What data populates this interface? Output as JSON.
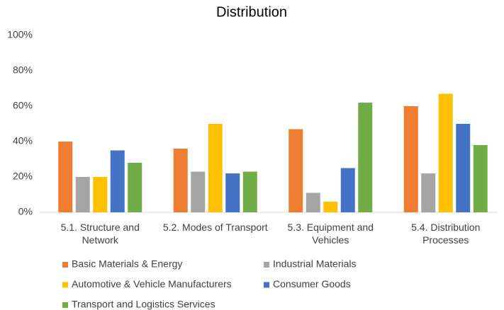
{
  "chart_data": {
    "type": "bar",
    "title": "Distribution",
    "categories": [
      "5.1. Structure and Network",
      "5.2. Modes of Transport",
      "5.3. Equipment and Vehicles",
      "5.4. Distribution Processes"
    ],
    "series": [
      {
        "name": "Basic Materials & Energy",
        "color": "#ed7d31",
        "values": [
          40,
          36,
          47,
          60
        ]
      },
      {
        "name": "Industrial Materials",
        "color": "#a5a5a5",
        "values": [
          20,
          23,
          11,
          22
        ]
      },
      {
        "name": "Automotive & Vehicle Manufacturers",
        "color": "#ffc000",
        "values": [
          20,
          50,
          6,
          67
        ]
      },
      {
        "name": "Consumer Goods",
        "color": "#4472c4",
        "values": [
          35,
          22,
          25,
          50
        ]
      },
      {
        "name": "Transport and Logistics Services",
        "color": "#70ad47",
        "values": [
          28,
          23,
          62,
          38
        ]
      }
    ],
    "ylim": [
      0,
      100
    ],
    "yticks": [
      {
        "value": 0,
        "label": "0%"
      },
      {
        "value": 20,
        "label": "20%"
      },
      {
        "value": 40,
        "label": "40%"
      },
      {
        "value": 60,
        "label": "60%"
      },
      {
        "value": 80,
        "label": "80%"
      },
      {
        "value": 100,
        "label": "100%"
      }
    ],
    "grid": false,
    "legend": "bottom"
  }
}
